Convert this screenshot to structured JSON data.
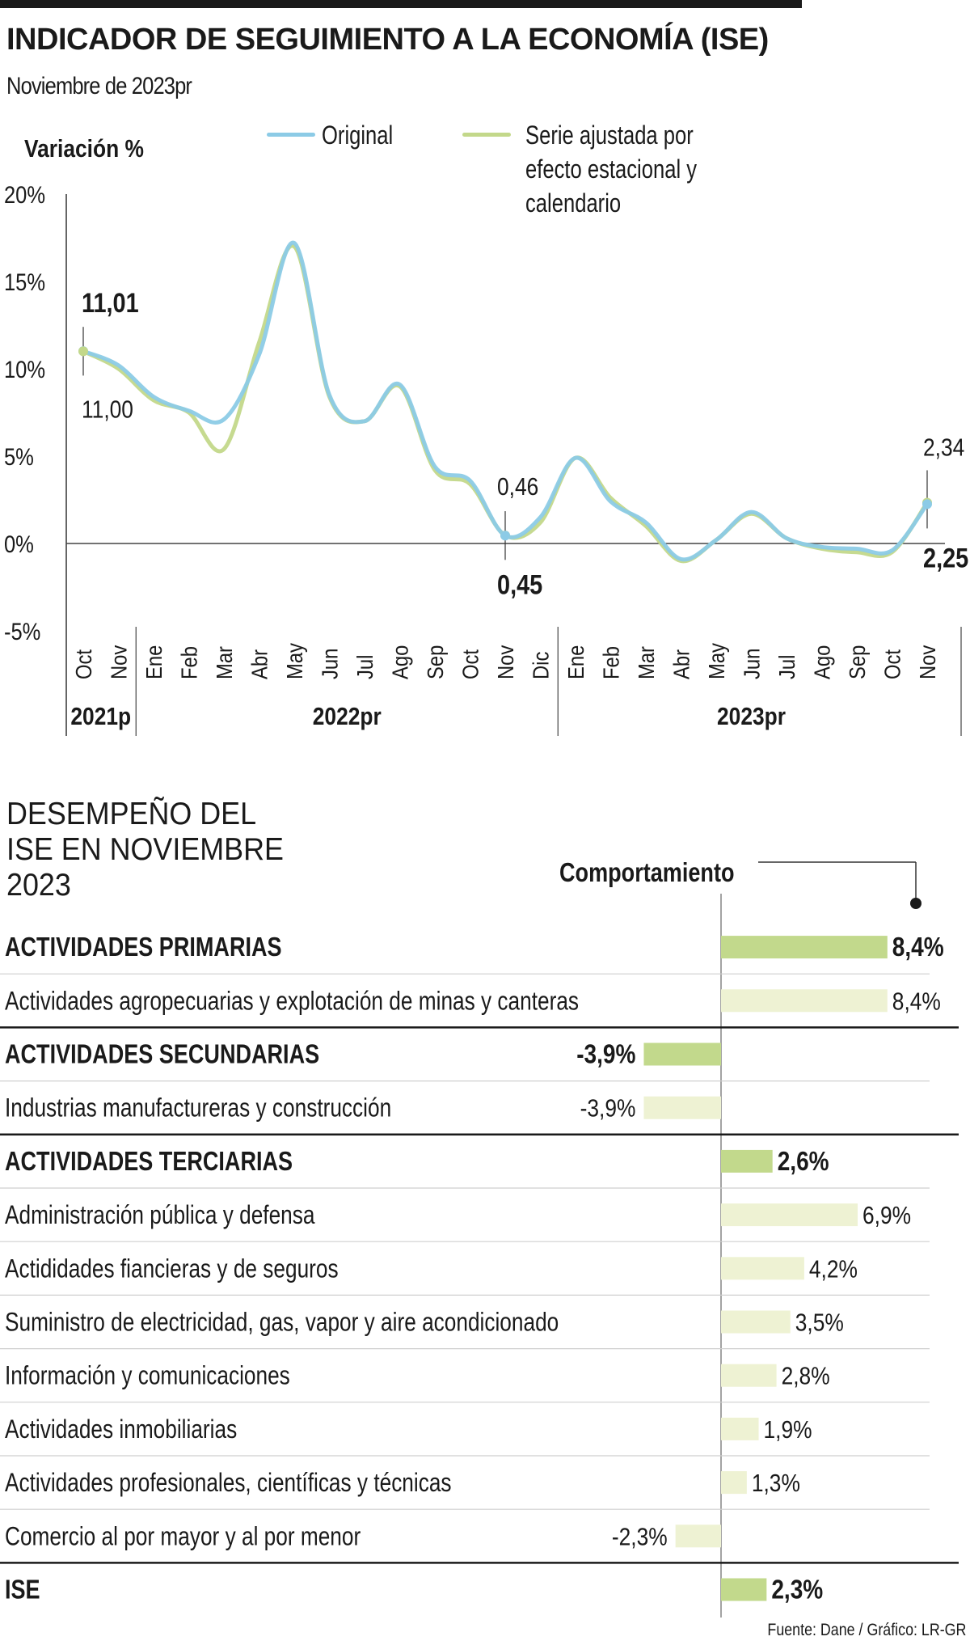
{
  "header": {
    "title": "INDICADOR DE SEGUIMIENTO A LA ECONOMÍA (ISE)",
    "subtitle": "Noviembre de 2023pr"
  },
  "colors": {
    "original": "#8ccbe6",
    "adjusted": "#c3d88a",
    "bar_main": "#c2d98c",
    "bar_sub": "#eef2d3"
  },
  "chart_data": [
    {
      "type": "line",
      "y_axis_label": "Variación %",
      "ylim": [
        -5,
        20
      ],
      "y_ticks": [
        20,
        15,
        10,
        5,
        0,
        -5
      ],
      "y_tick_labels": [
        "20%",
        "15%",
        "10%",
        "5%",
        "0%",
        "-5%"
      ],
      "x": [
        "Oct",
        "Nov",
        "Ene",
        "Feb",
        "Mar",
        "Abr",
        "May",
        "Jun",
        "Jul",
        "Ago",
        "Sep",
        "Oct",
        "Nov",
        "Dic",
        "Ene",
        "Feb",
        "Mar",
        "Abr",
        "May",
        "Jun",
        "Jul",
        "Ago",
        "Sep",
        "Oct",
        "Nov"
      ],
      "year_groups": [
        {
          "label": "2021p",
          "start": 0,
          "end": 1
        },
        {
          "label": "2022pr",
          "start": 2,
          "end": 13
        },
        {
          "label": "2023pr",
          "start": 14,
          "end": 24
        }
      ],
      "series": [
        {
          "name": "Original",
          "values": [
            11.01,
            10.2,
            8.4,
            7.6,
            7.1,
            10.8,
            17.2,
            8.5,
            7.0,
            9.1,
            4.4,
            3.6,
            0.45,
            1.5,
            4.9,
            2.4,
            1.2,
            -0.9,
            0.2,
            1.8,
            0.3,
            -0.2,
            -0.3,
            -0.4,
            2.25
          ]
        },
        {
          "name": "Serie ajustada por efecto estacional y calendario",
          "values": [
            11.0,
            10.0,
            8.2,
            7.5,
            5.4,
            11.5,
            17.0,
            8.4,
            7.0,
            9.0,
            4.2,
            3.4,
            0.46,
            1.2,
            4.9,
            2.6,
            1.0,
            -1.0,
            0.2,
            1.7,
            0.3,
            -0.3,
            -0.5,
            -0.5,
            2.34
          ]
        }
      ],
      "annotations": [
        {
          "series": 0,
          "index": 0,
          "label": "11,01",
          "bold": true
        },
        {
          "series": 1,
          "index": 0,
          "label": "11,00",
          "bold": false
        },
        {
          "series": 1,
          "index": 12,
          "label": "0,46",
          "bold": false
        },
        {
          "series": 0,
          "index": 12,
          "label": "0,45",
          "bold": true
        },
        {
          "series": 1,
          "index": 24,
          "label": "2,34",
          "bold": false
        },
        {
          "series": 0,
          "index": 24,
          "label": "2,25",
          "bold": true
        }
      ]
    },
    {
      "type": "bar",
      "title": "DESEMPEÑO DEL ISE EN NOVIEMBRE 2023",
      "value_header": "Comportamiento",
      "rows": [
        {
          "label": "ACTIVIDADES PRIMARIAS",
          "value": 8.4,
          "value_label": "8,4%",
          "bold": true
        },
        {
          "label": "Actividades agropecuarias y explotación de minas y canteras",
          "value": 8.4,
          "value_label": "8,4%",
          "bold": false
        },
        {
          "label": "ACTIVIDADES SECUNDARIAS",
          "value": -3.9,
          "value_label": "-3,9%",
          "bold": true
        },
        {
          "label": "Industrias manufactureras y construcción",
          "value": -3.9,
          "value_label": "-3,9%",
          "bold": false
        },
        {
          "label": "ACTIVIDADES TERCIARIAS",
          "value": 2.6,
          "value_label": "2,6%",
          "bold": true
        },
        {
          "label": "Administración pública y defensa",
          "value": 6.9,
          "value_label": "6,9%",
          "bold": false
        },
        {
          "label": "Actididades fiancieras y de seguros",
          "value": 4.2,
          "value_label": "4,2%",
          "bold": false
        },
        {
          "label": "Suministro de electricidad, gas, vapor y aire acondicionado",
          "value": 3.5,
          "value_label": "3,5%",
          "bold": false
        },
        {
          "label": "Información y comunicaciones",
          "value": 2.8,
          "value_label": "2,8%",
          "bold": false
        },
        {
          "label": "Actividades inmobiliarias",
          "value": 1.9,
          "value_label": "1,9%",
          "bold": false
        },
        {
          "label": "Actividades profesionales, científicas y técnicas",
          "value": 1.3,
          "value_label": "1,3%",
          "bold": false
        },
        {
          "label": "Comercio al por mayor y al por menor",
          "value": -2.3,
          "value_label": "-2,3%",
          "bold": false
        },
        {
          "label": "ISE",
          "value": 2.3,
          "value_label": "2,3%",
          "bold": true
        }
      ]
    }
  ],
  "footer": {
    "source": "Fuente: Dane / Gráfico: LR-GR"
  }
}
